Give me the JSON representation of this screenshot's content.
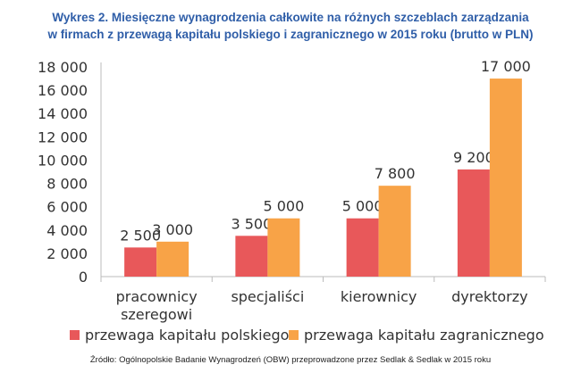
{
  "title_line1": "Wykres 2. Miesięczne wynagrodzenia całkowite na różnych szczeblach zarządzania",
  "title_line2": "w firmach z przewagą kapitału polskiego i zagranicznego w 2015 roku (brutto w PLN)",
  "source": "Źródło: Ogólnopolskie Badanie Wynagrodzeń (OBW) przeprowadzone przez Sedlak & Sedlak w 2015 roku",
  "colors": {
    "polish": "#e8585a",
    "foreign": "#f8a347",
    "axis": "#bbbbbb"
  },
  "chart_data": {
    "type": "bar",
    "categories": [
      [
        "pracownicy",
        "szeregowi"
      ],
      [
        "specjaliści"
      ],
      [
        "kierownicy"
      ],
      [
        "dyrektorzy"
      ]
    ],
    "series": [
      {
        "name": "przewaga kapitału polskiego",
        "values": [
          2500,
          3500,
          5000,
          9200
        ],
        "labels": [
          "2 500",
          "3 500",
          "5 000",
          "9 200"
        ]
      },
      {
        "name": "przewaga kapitału zagranicznego",
        "values": [
          3000,
          5000,
          7800,
          17000
        ],
        "labels": [
          "3 000",
          "5 000",
          "7 800",
          "17 000"
        ]
      }
    ],
    "ylim": [
      0,
      18000
    ],
    "yticks": [
      0,
      2000,
      4000,
      6000,
      8000,
      10000,
      12000,
      14000,
      16000,
      18000
    ],
    "ytick_labels": [
      "0",
      "2 000",
      "4 000",
      "6 000",
      "8 000",
      "10 000",
      "12 000",
      "14 000",
      "16 000",
      "18 000"
    ],
    "grid": false,
    "legend_position": "bottom"
  }
}
